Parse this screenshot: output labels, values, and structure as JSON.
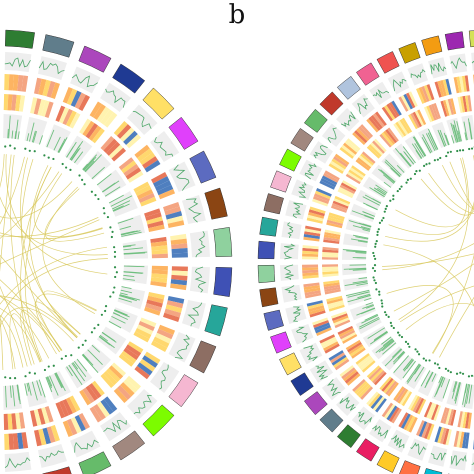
{
  "figure": {
    "panel_label": "b",
    "style": {
      "chord_color": "#d8c85a",
      "line_track_color": "#4fa86a",
      "bar_track_color": "#6fbf7f",
      "dot_color": "#2f8f4a",
      "track_background": "#eeeeee",
      "heat_palette": [
        "#fff3b0",
        "#ffd86e",
        "#fdb462",
        "#f4a582",
        "#e8785a",
        "#4f7fbf"
      ],
      "chromosome_palette": [
        "#8b4513",
        "#c8a000",
        "#1f3a93",
        "#c0392b",
        "#e91e63",
        "#f5b7d1",
        "#7f8c2b",
        "#8fd19e",
        "#f39c12",
        "#ffe066",
        "#b0c4de",
        "#2e7d32",
        "#7cfc00",
        "#00bcd4",
        "#3f51b5",
        "#9c27b0",
        "#e040fb",
        "#f06292",
        "#607d8b",
        "#a1887f",
        "#ff7043",
        "#26a69a",
        "#d4e157",
        "#5c6bc0",
        "#ef5350",
        "#ab47bc",
        "#66bb6a",
        "#ffca28",
        "#8d6e63",
        "#29b6f6"
      ]
    },
    "circos_left": {
      "chromosome_count": 36,
      "chord_count": 60
    },
    "circos_right": {
      "chromosome_count": 60,
      "chord_count": 22
    }
  }
}
